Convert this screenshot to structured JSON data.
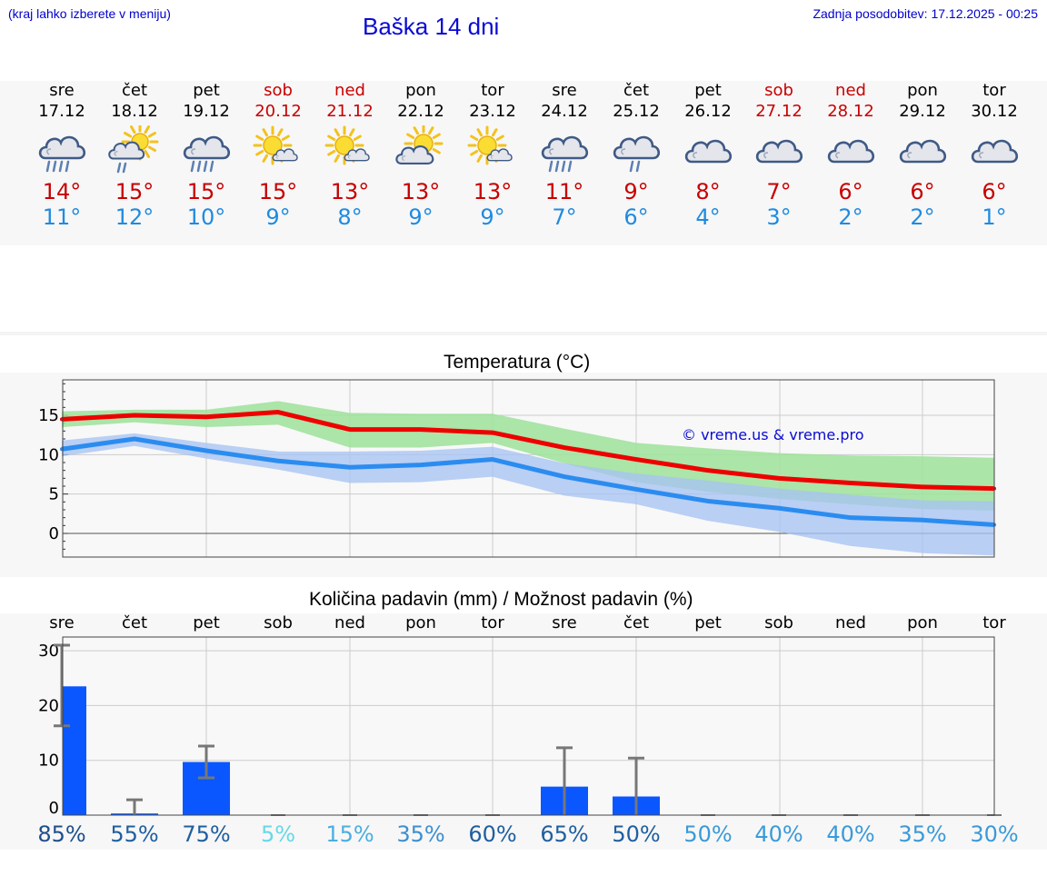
{
  "header": {
    "left_note": "(kraj lahko izberete v meniju)",
    "title": "Baška 14 dni",
    "update": "Zadnja posodobitev: 17.12.2025 - 00:25"
  },
  "colors": {
    "max_temp": "#c80000",
    "min_temp": "#1f8be0",
    "weekend": "#c80000",
    "max_line": "#ee0000",
    "min_line": "#2b8cf0",
    "max_band": "#9ee29a",
    "min_band": "#a7c3f2",
    "bar": "#0a57ff"
  },
  "days": [
    {
      "name": "sre",
      "date": "17.12",
      "weekend": false,
      "icon": "cloud-rain-icon",
      "max": "14°",
      "min": "11°"
    },
    {
      "name": "čet",
      "date": "18.12",
      "weekend": false,
      "icon": "sun-cloud-drizzle-icon",
      "max": "15°",
      "min": "12°"
    },
    {
      "name": "pet",
      "date": "19.12",
      "weekend": false,
      "icon": "cloud-rain-icon",
      "max": "15°",
      "min": "10°"
    },
    {
      "name": "sob",
      "date": "20.12",
      "weekend": true,
      "icon": "sun-small-cloud-icon",
      "max": "15°",
      "min": "9°"
    },
    {
      "name": "ned",
      "date": "21.12",
      "weekend": true,
      "icon": "sun-small-cloud-icon",
      "max": "13°",
      "min": "8°"
    },
    {
      "name": "pon",
      "date": "22.12",
      "weekend": false,
      "icon": "sun-cloud-icon",
      "max": "13°",
      "min": "9°"
    },
    {
      "name": "tor",
      "date": "23.12",
      "weekend": false,
      "icon": "sun-small-cloud-icon",
      "max": "13°",
      "min": "9°"
    },
    {
      "name": "sre",
      "date": "24.12",
      "weekend": false,
      "icon": "cloud-rain-icon",
      "max": "11°",
      "min": "7°"
    },
    {
      "name": "čet",
      "date": "25.12",
      "weekend": false,
      "icon": "cloud-drizzle-icon",
      "max": "9°",
      "min": "6°"
    },
    {
      "name": "pet",
      "date": "26.12",
      "weekend": false,
      "icon": "cloud-icon",
      "max": "8°",
      "min": "4°"
    },
    {
      "name": "sob",
      "date": "27.12",
      "weekend": true,
      "icon": "cloud-icon",
      "max": "7°",
      "min": "3°"
    },
    {
      "name": "ned",
      "date": "28.12",
      "weekend": true,
      "icon": "cloud-icon",
      "max": "6°",
      "min": "2°"
    },
    {
      "name": "pon",
      "date": "29.12",
      "weekend": false,
      "icon": "cloud-icon",
      "max": "6°",
      "min": "2°"
    },
    {
      "name": "tor",
      "date": "30.12",
      "weekend": false,
      "icon": "cloud-icon",
      "max": "6°",
      "min": "1°"
    }
  ],
  "chart_data": [
    {
      "type": "line",
      "title": "Temperatura (°C)",
      "watermark": "© vreme.us & vreme.pro",
      "yticks": [
        "0",
        "5",
        "10",
        "15"
      ],
      "ylim": [
        -3,
        19.5
      ],
      "x": [
        0,
        1,
        2,
        3,
        4,
        5,
        6,
        7,
        8,
        9,
        10,
        11,
        12,
        13
      ],
      "series": [
        {
          "name": "max",
          "values": [
            14.5,
            15.0,
            14.8,
            15.4,
            13.2,
            13.2,
            12.8,
            10.9,
            9.4,
            8.0,
            7.0,
            6.4,
            5.9,
            5.7
          ]
        },
        {
          "name": "min",
          "values": [
            10.7,
            12.0,
            10.5,
            9.2,
            8.4,
            8.7,
            9.4,
            7.2,
            5.6,
            4.1,
            3.2,
            2.0,
            1.7,
            1.1
          ]
        }
      ],
      "bands": [
        {
          "name": "max_range",
          "upper": [
            15.5,
            15.7,
            15.7,
            16.8,
            15.3,
            15.2,
            15.2,
            13.3,
            11.5,
            10.8,
            10.2,
            9.9,
            9.8,
            9.6
          ],
          "lower": [
            13.5,
            14.1,
            13.5,
            13.8,
            10.9,
            10.9,
            11.5,
            8.9,
            6.5,
            5.3,
            4.4,
            3.7,
            3.1,
            2.9
          ]
        },
        {
          "name": "min_range",
          "upper": [
            11.8,
            12.7,
            11.5,
            10.4,
            10.4,
            10.5,
            11.0,
            8.9,
            7.6,
            6.7,
            5.7,
            4.9,
            4.2,
            4.1
          ],
          "lower": [
            9.8,
            11.1,
            9.5,
            8.1,
            6.4,
            6.5,
            7.2,
            4.8,
            3.7,
            1.6,
            0.2,
            -1.6,
            -2.5,
            -2.8
          ]
        }
      ]
    },
    {
      "type": "bar",
      "title": "Količina padavin (mm) / Možnost padavin (%)",
      "yticks": [
        "0",
        "10",
        "20",
        "30"
      ],
      "ylim": [
        0,
        32.5
      ],
      "categories": [
        "sre",
        "čet",
        "pet",
        "sob",
        "ned",
        "pon",
        "tor",
        "sre",
        "čet",
        "pet",
        "sob",
        "ned",
        "pon",
        "tor"
      ],
      "values": [
        23.5,
        0.3,
        9.7,
        0,
        0,
        0,
        0,
        5.2,
        3.4,
        0,
        0,
        0,
        0,
        0
      ],
      "error_low": [
        16.3,
        0,
        6.8,
        0,
        0,
        0,
        0,
        0,
        0,
        0,
        0,
        0,
        0,
        0
      ],
      "error_high": [
        31.0,
        2.8,
        12.6,
        0,
        0,
        0,
        0,
        12.3,
        10.4,
        0,
        0,
        0,
        0,
        0
      ],
      "probability": [
        "85%",
        "55%",
        "75%",
        "5%",
        "15%",
        "35%",
        "60%",
        "65%",
        "50%",
        "50%",
        "40%",
        "40%",
        "35%",
        "30%"
      ],
      "probability_colors": [
        "#1f4f8c",
        "#1f5fa0",
        "#1f5fa0",
        "#66d8e8",
        "#4aaee0",
        "#3c8fd0",
        "#1f5fa0",
        "#1f5fa0",
        "#1f5fa0",
        "#3a9ad8",
        "#3a9ad8",
        "#3a9ad8",
        "#3a9ad8",
        "#3a9ad8"
      ]
    }
  ]
}
